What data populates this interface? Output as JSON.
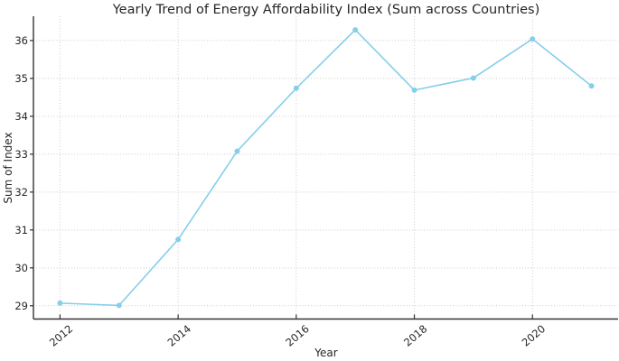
{
  "chart_data": {
    "type": "line",
    "title": "Yearly Trend of Energy Affordability Index (Sum across Countries)",
    "xlabel": "Year",
    "ylabel": "Sum of Index",
    "x": [
      2012,
      2013,
      2014,
      2015,
      2016,
      2017,
      2018,
      2019,
      2020,
      2021
    ],
    "series": [
      {
        "name": "Sum of Index",
        "values": [
          29.07,
          29.01,
          30.75,
          33.08,
          34.74,
          36.28,
          34.69,
          35.01,
          36.04,
          34.8
        ]
      }
    ],
    "x_tick_labels": [
      "2012",
      "2014",
      "2016",
      "2018",
      "2020"
    ],
    "x_tick_values": [
      2012,
      2014,
      2016,
      2018,
      2020
    ],
    "y_tick_labels": [
      "29",
      "30",
      "31",
      "32",
      "33",
      "34",
      "35",
      "36"
    ],
    "y_tick_values": [
      29,
      30,
      31,
      32,
      33,
      34,
      35,
      36
    ],
    "xlim": [
      2011.55,
      2021.45
    ],
    "ylim": [
      28.65,
      36.64
    ],
    "grid": true,
    "grid_style": "dotted",
    "legend": "none",
    "colors": {
      "line": "#87CEEB",
      "marker": "#87CEEB",
      "grid": "#cccccc",
      "spine": "#333333",
      "tick": "#333333",
      "text": "#262626",
      "background": "#ffffff"
    },
    "x_tick_rotation_deg": 40
  }
}
